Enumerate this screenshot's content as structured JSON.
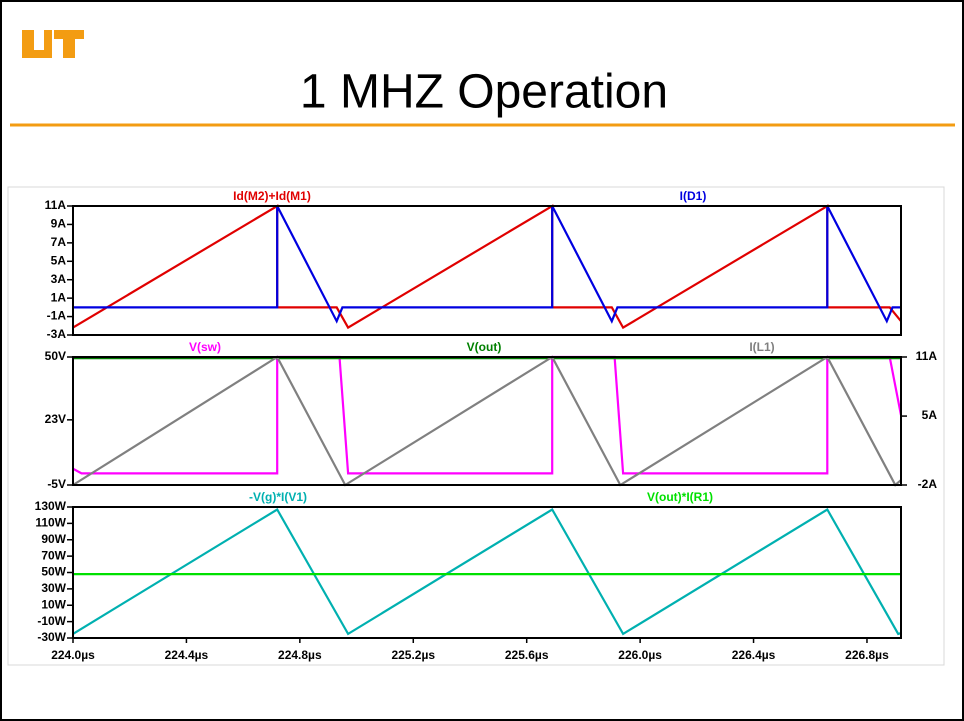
{
  "title": "1 MHZ Operation",
  "chart_data": [
    {
      "type": "line",
      "xlim": [
        224.0,
        226.92
      ],
      "ylim": [
        -3,
        11
      ],
      "yticks": [
        {
          "value": 11,
          "label": "11A"
        },
        {
          "value": 9,
          "label": "9A"
        },
        {
          "value": 7,
          "label": "7A"
        },
        {
          "value": 5,
          "label": "5A"
        },
        {
          "value": 3,
          "label": "3A"
        },
        {
          "value": 1,
          "label": "1A"
        },
        {
          "value": -1,
          "label": "-1A"
        },
        {
          "value": -3,
          "label": "-3A"
        }
      ],
      "series": [
        {
          "name": "Id(M2)+Id(M1)",
          "color": "#e00000",
          "x": [
            224.0,
            224.72,
            224.72,
            224.93,
            224.97,
            225.69,
            225.69,
            225.9,
            225.94,
            226.66,
            226.66,
            226.88,
            226.92
          ],
          "values": [
            -2.2,
            11,
            0,
            0,
            -2.2,
            11,
            0,
            0,
            -2.2,
            11,
            0,
            0,
            -1.5
          ]
        },
        {
          "name": "I(D1)",
          "color": "#0000e0",
          "x": [
            224.0,
            224.72,
            224.72,
            224.93,
            224.95,
            225.69,
            225.69,
            225.9,
            225.92,
            226.66,
            226.66,
            226.87,
            226.89,
            226.92
          ],
          "values": [
            0,
            0,
            11,
            -1.5,
            0,
            0,
            11,
            -1.5,
            0,
            0,
            11,
            -1.5,
            0,
            0
          ]
        }
      ]
    },
    {
      "type": "line",
      "xlim": [
        224.0,
        226.92
      ],
      "ylim": [
        -5,
        50
      ],
      "yticks": [
        {
          "value": 50,
          "label": "50V"
        },
        {
          "value": 23,
          "label": "23V"
        },
        {
          "value": -5,
          "label": "-5V"
        }
      ],
      "y2lim": [
        -2,
        11
      ],
      "y2ticks": [
        {
          "value": 11,
          "label": "11A"
        },
        {
          "value": 5,
          "label": "5A"
        },
        {
          "value": -2,
          "label": "-2A"
        }
      ],
      "series": [
        {
          "name": "V(sw)",
          "color": "#ff00ff",
          "x": [
            224.0,
            224.03,
            224.72,
            224.72,
            224.94,
            224.97,
            225.69,
            225.69,
            225.91,
            225.94,
            226.66,
            226.66,
            226.88,
            226.92
          ],
          "values": [
            2,
            0,
            0,
            50,
            50,
            0,
            0,
            50,
            50,
            0,
            0,
            50,
            50,
            25
          ]
        },
        {
          "name": "V(out)",
          "color": "#008000",
          "x": [
            224.0,
            226.92
          ],
          "values": [
            49.5,
            49.5
          ]
        },
        {
          "name": "I(L1)",
          "color": "#808080",
          "axis": "y2",
          "x": [
            224.0,
            224.72,
            224.96,
            225.69,
            225.93,
            226.66,
            226.9,
            226.92
          ],
          "values": [
            -2,
            11,
            -2,
            11,
            -2,
            11,
            -2,
            -1.5
          ]
        }
      ]
    },
    {
      "type": "line",
      "xlim": [
        224.0,
        226.92
      ],
      "ylim": [
        -30,
        130
      ],
      "yticks": [
        {
          "value": 130,
          "label": "130W"
        },
        {
          "value": 110,
          "label": "110W"
        },
        {
          "value": 90,
          "label": "90W"
        },
        {
          "value": 70,
          "label": "70W"
        },
        {
          "value": 50,
          "label": "50W"
        },
        {
          "value": 30,
          "label": "30W"
        },
        {
          "value": 10,
          "label": "10W"
        },
        {
          "value": -10,
          "label": "-10W"
        },
        {
          "value": -30,
          "label": "-30W"
        }
      ],
      "xticks": [
        {
          "value": 224.0,
          "label": "224.0µs"
        },
        {
          "value": 224.4,
          "label": "224.4µs"
        },
        {
          "value": 224.8,
          "label": "224.8µs"
        },
        {
          "value": 225.2,
          "label": "225.2µs"
        },
        {
          "value": 225.6,
          "label": "225.6µs"
        },
        {
          "value": 226.0,
          "label": "226.0µs"
        },
        {
          "value": 226.4,
          "label": "226.4µs"
        },
        {
          "value": 226.8,
          "label": "226.8µs"
        }
      ],
      "series": [
        {
          "name": "-V(g)*I(V1)",
          "color": "#00b0b0",
          "x": [
            224.0,
            224.72,
            224.97,
            225.69,
            225.94,
            226.66,
            226.91,
            226.92
          ],
          "values": [
            -25,
            127,
            -25,
            127,
            -25,
            127,
            -25,
            -24
          ]
        },
        {
          "name": "V(out)*I(R1)",
          "color": "#00e000",
          "x": [
            224.0,
            226.92
          ],
          "values": [
            48,
            48
          ]
        }
      ]
    }
  ]
}
